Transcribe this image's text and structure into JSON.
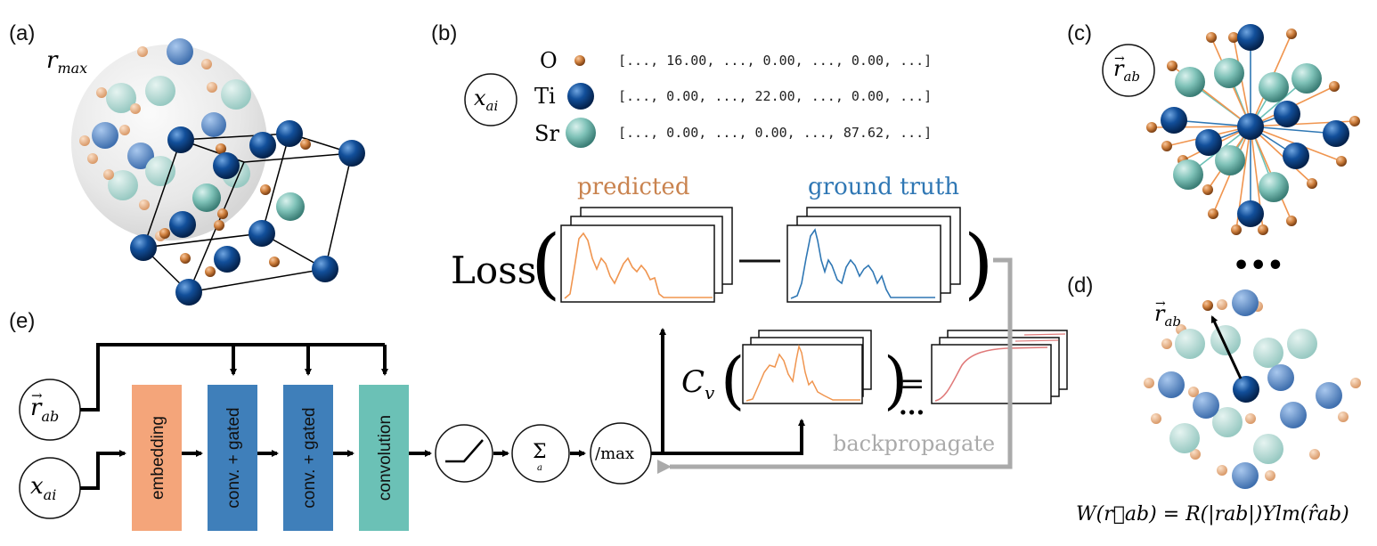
{
  "panels": {
    "a": "(a)",
    "b": "(b)",
    "c": "(c)",
    "d": "(d)",
    "e": "(e)"
  },
  "panel_a": {
    "radius_label": "r",
    "radius_sub": "max"
  },
  "panel_b": {
    "atom_node": {
      "sym": "x",
      "sub": "ai"
    },
    "atoms": [
      {
        "symbol": "O",
        "vector": "[..., 16.00, ..., 0.00, ..., 0.00, ...]",
        "color": "#c8773a"
      },
      {
        "symbol": "Ti",
        "vector": "[..., 0.00, ..., 22.00, ..., 0.00, ...]",
        "color": "#0d4a8f"
      },
      {
        "symbol": "Sr",
        "vector": "[..., 0.00, ..., 0.00, ..., 87.62, ...]",
        "color": "#6fb8ae"
      }
    ],
    "predicted_label": "predicted",
    "ground_truth_label": "ground truth",
    "loss_label": "Loss",
    "cv_label": "C",
    "cv_sub": "v",
    "equals": "=",
    "ellipsis": "...",
    "backprop_label": "backpropagate"
  },
  "panel_c": {
    "node": {
      "sym": "r",
      "sub": "ab"
    }
  },
  "panel_d": {
    "dots": "•••",
    "vector_label": {
      "sym": "r",
      "sub": "ab"
    },
    "formula": "W(r⃗ab) = R(|rab|)Ylm(r̂ab)"
  },
  "panel_e": {
    "input_r": {
      "sym": "r",
      "sub": "ab"
    },
    "input_x": {
      "sym": "x",
      "sub": "ai"
    },
    "blocks": [
      {
        "label": "embedding",
        "color": "#f4a57a"
      },
      {
        "label": "conv. + gated",
        "color": "#3f7fba"
      },
      {
        "label": "conv. + gated",
        "color": "#3f7fba"
      },
      {
        "label": "convolution",
        "color": "#6bc1b6"
      }
    ],
    "sum_symbol": "Σ",
    "sum_sub": "a",
    "max_label": "/max"
  },
  "colors": {
    "predicted": "#f0954f",
    "ground_truth": "#2f77b4",
    "cv_curve": "#e07a7a",
    "backprop": "#aaaaaa",
    "ti": "#0d4a8f",
    "sr": "#6fb8ae",
    "o": "#c8773a"
  }
}
